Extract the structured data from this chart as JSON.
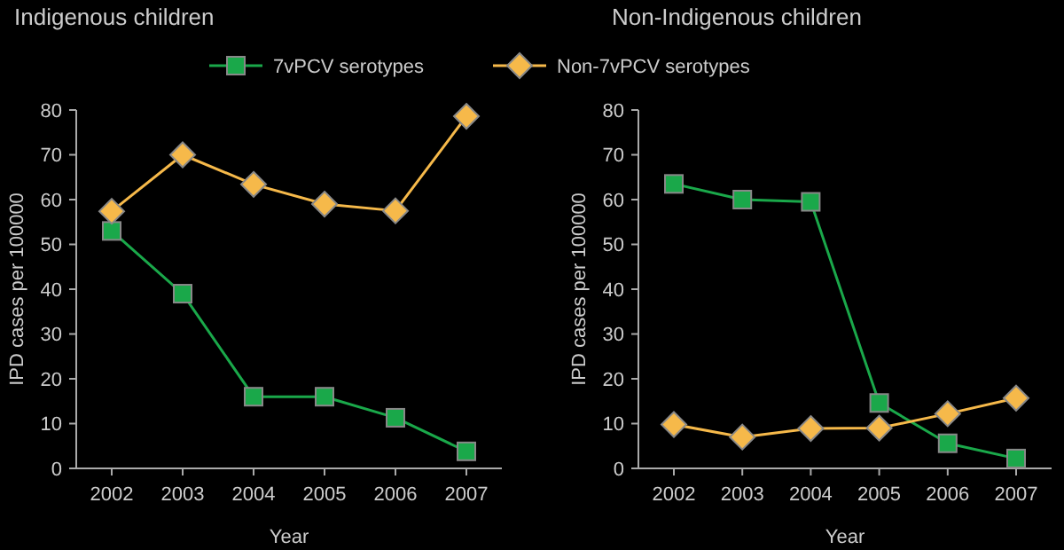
{
  "chart_data": [
    {
      "type": "line",
      "title": "Indigenous children",
      "xlabel": "Year",
      "ylabel": "IPD cases per 100000",
      "categories": [
        "2002",
        "2003",
        "2004",
        "2005",
        "2006",
        "2007"
      ],
      "ylim": [
        0,
        80
      ],
      "yticks": [
        0,
        10,
        20,
        30,
        40,
        50,
        60,
        70,
        80
      ],
      "legend": "top",
      "grid": false,
      "series": [
        {
          "name": "7vPCV serotypes",
          "color": "#1aa84a",
          "marker": "square",
          "values": [
            53,
            39,
            16,
            16,
            11.3,
            3.8
          ]
        },
        {
          "name": "Non-7vPCV serotypes",
          "color": "#f6b94a",
          "marker": "diamond",
          "values": [
            57.4,
            70,
            63.4,
            59,
            57.5,
            78.6
          ]
        }
      ]
    },
    {
      "type": "line",
      "title": "Non-Indigenous children",
      "xlabel": "Year",
      "ylabel": "IPD cases per 100000",
      "categories": [
        "2002",
        "2003",
        "2004",
        "2005",
        "2006",
        "2007"
      ],
      "ylim": [
        0,
        80
      ],
      "yticks": [
        0,
        10,
        20,
        30,
        40,
        50,
        60,
        70,
        80
      ],
      "grid": false,
      "series": [
        {
          "color": "#1aa84a",
          "marker": "square",
          "values": [
            63.5,
            60,
            59.5,
            14.6,
            5.6,
            2.2
          ]
        },
        {
          "color": "#f6b94a",
          "marker": "diamond",
          "values": [
            9.8,
            7,
            8.9,
            9,
            12.2,
            15.7
          ]
        }
      ]
    }
  ]
}
